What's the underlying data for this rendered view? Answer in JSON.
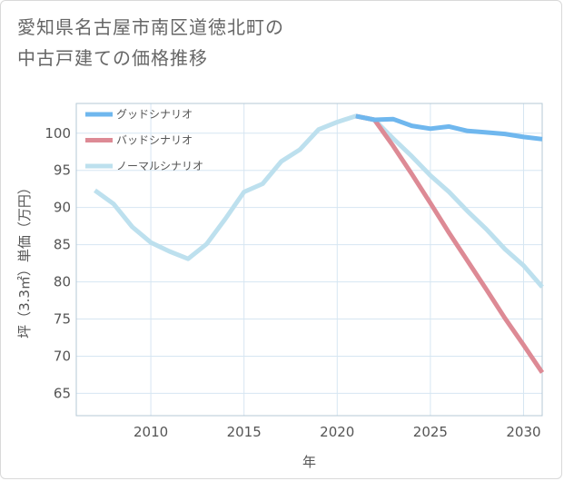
{
  "title": {
    "line1": "愛知県名古屋市南区道徳北町の",
    "line2": "中古戸建ての価格推移"
  },
  "colors": {
    "good": "#6fb7ee",
    "bad": "#dd8a95",
    "normal": "#bde0ee",
    "grid": "#d6e6f2",
    "plot_border": "#b5c8d6"
  },
  "chart_data": {
    "type": "line",
    "xlabel": "年",
    "ylabel": "坪（3.3㎡）単価（万円）",
    "xlim": [
      2006,
      2031
    ],
    "ylim": [
      62,
      104
    ],
    "xticks": [
      2010,
      2015,
      2020,
      2025,
      2030
    ],
    "yticks": [
      65,
      70,
      75,
      80,
      85,
      90,
      95,
      100
    ],
    "grid": true,
    "legend_position": "top-left",
    "series": [
      {
        "name": "グッドシナリオ",
        "color_key": "good",
        "x": [
          2021,
          2022,
          2023,
          2024,
          2025,
          2026,
          2027,
          2028,
          2029,
          2030,
          2031
        ],
        "y": [
          102.3,
          101.8,
          101.9,
          101.0,
          100.6,
          100.9,
          100.3,
          100.1,
          99.9,
          99.5,
          99.2
        ]
      },
      {
        "name": "バッドシナリオ",
        "color_key": "bad",
        "x": [
          2021,
          2022,
          2023,
          2024,
          2025,
          2026,
          2027,
          2028,
          2029,
          2030,
          2031
        ],
        "y": [
          102.3,
          101.8,
          98.3,
          94.5,
          90.6,
          86.6,
          82.8,
          79.0,
          75.1,
          71.5,
          67.8
        ]
      },
      {
        "name": "ノーマルシナリオ",
        "color_key": "normal",
        "x": [
          2007,
          2008,
          2009,
          2010,
          2011,
          2012,
          2013,
          2014,
          2015,
          2016,
          2017,
          2018,
          2019,
          2020,
          2021,
          2022,
          2023,
          2024,
          2025,
          2026,
          2027,
          2028,
          2029,
          2030,
          2031
        ],
        "y": [
          92.3,
          90.5,
          87.4,
          85.3,
          84.1,
          83.1,
          85.1,
          88.5,
          92.1,
          93.2,
          96.2,
          97.8,
          100.5,
          101.5,
          102.3,
          101.8,
          99.3,
          96.9,
          94.3,
          92.1,
          89.5,
          87.1,
          84.4,
          82.2,
          79.3
        ]
      }
    ]
  }
}
